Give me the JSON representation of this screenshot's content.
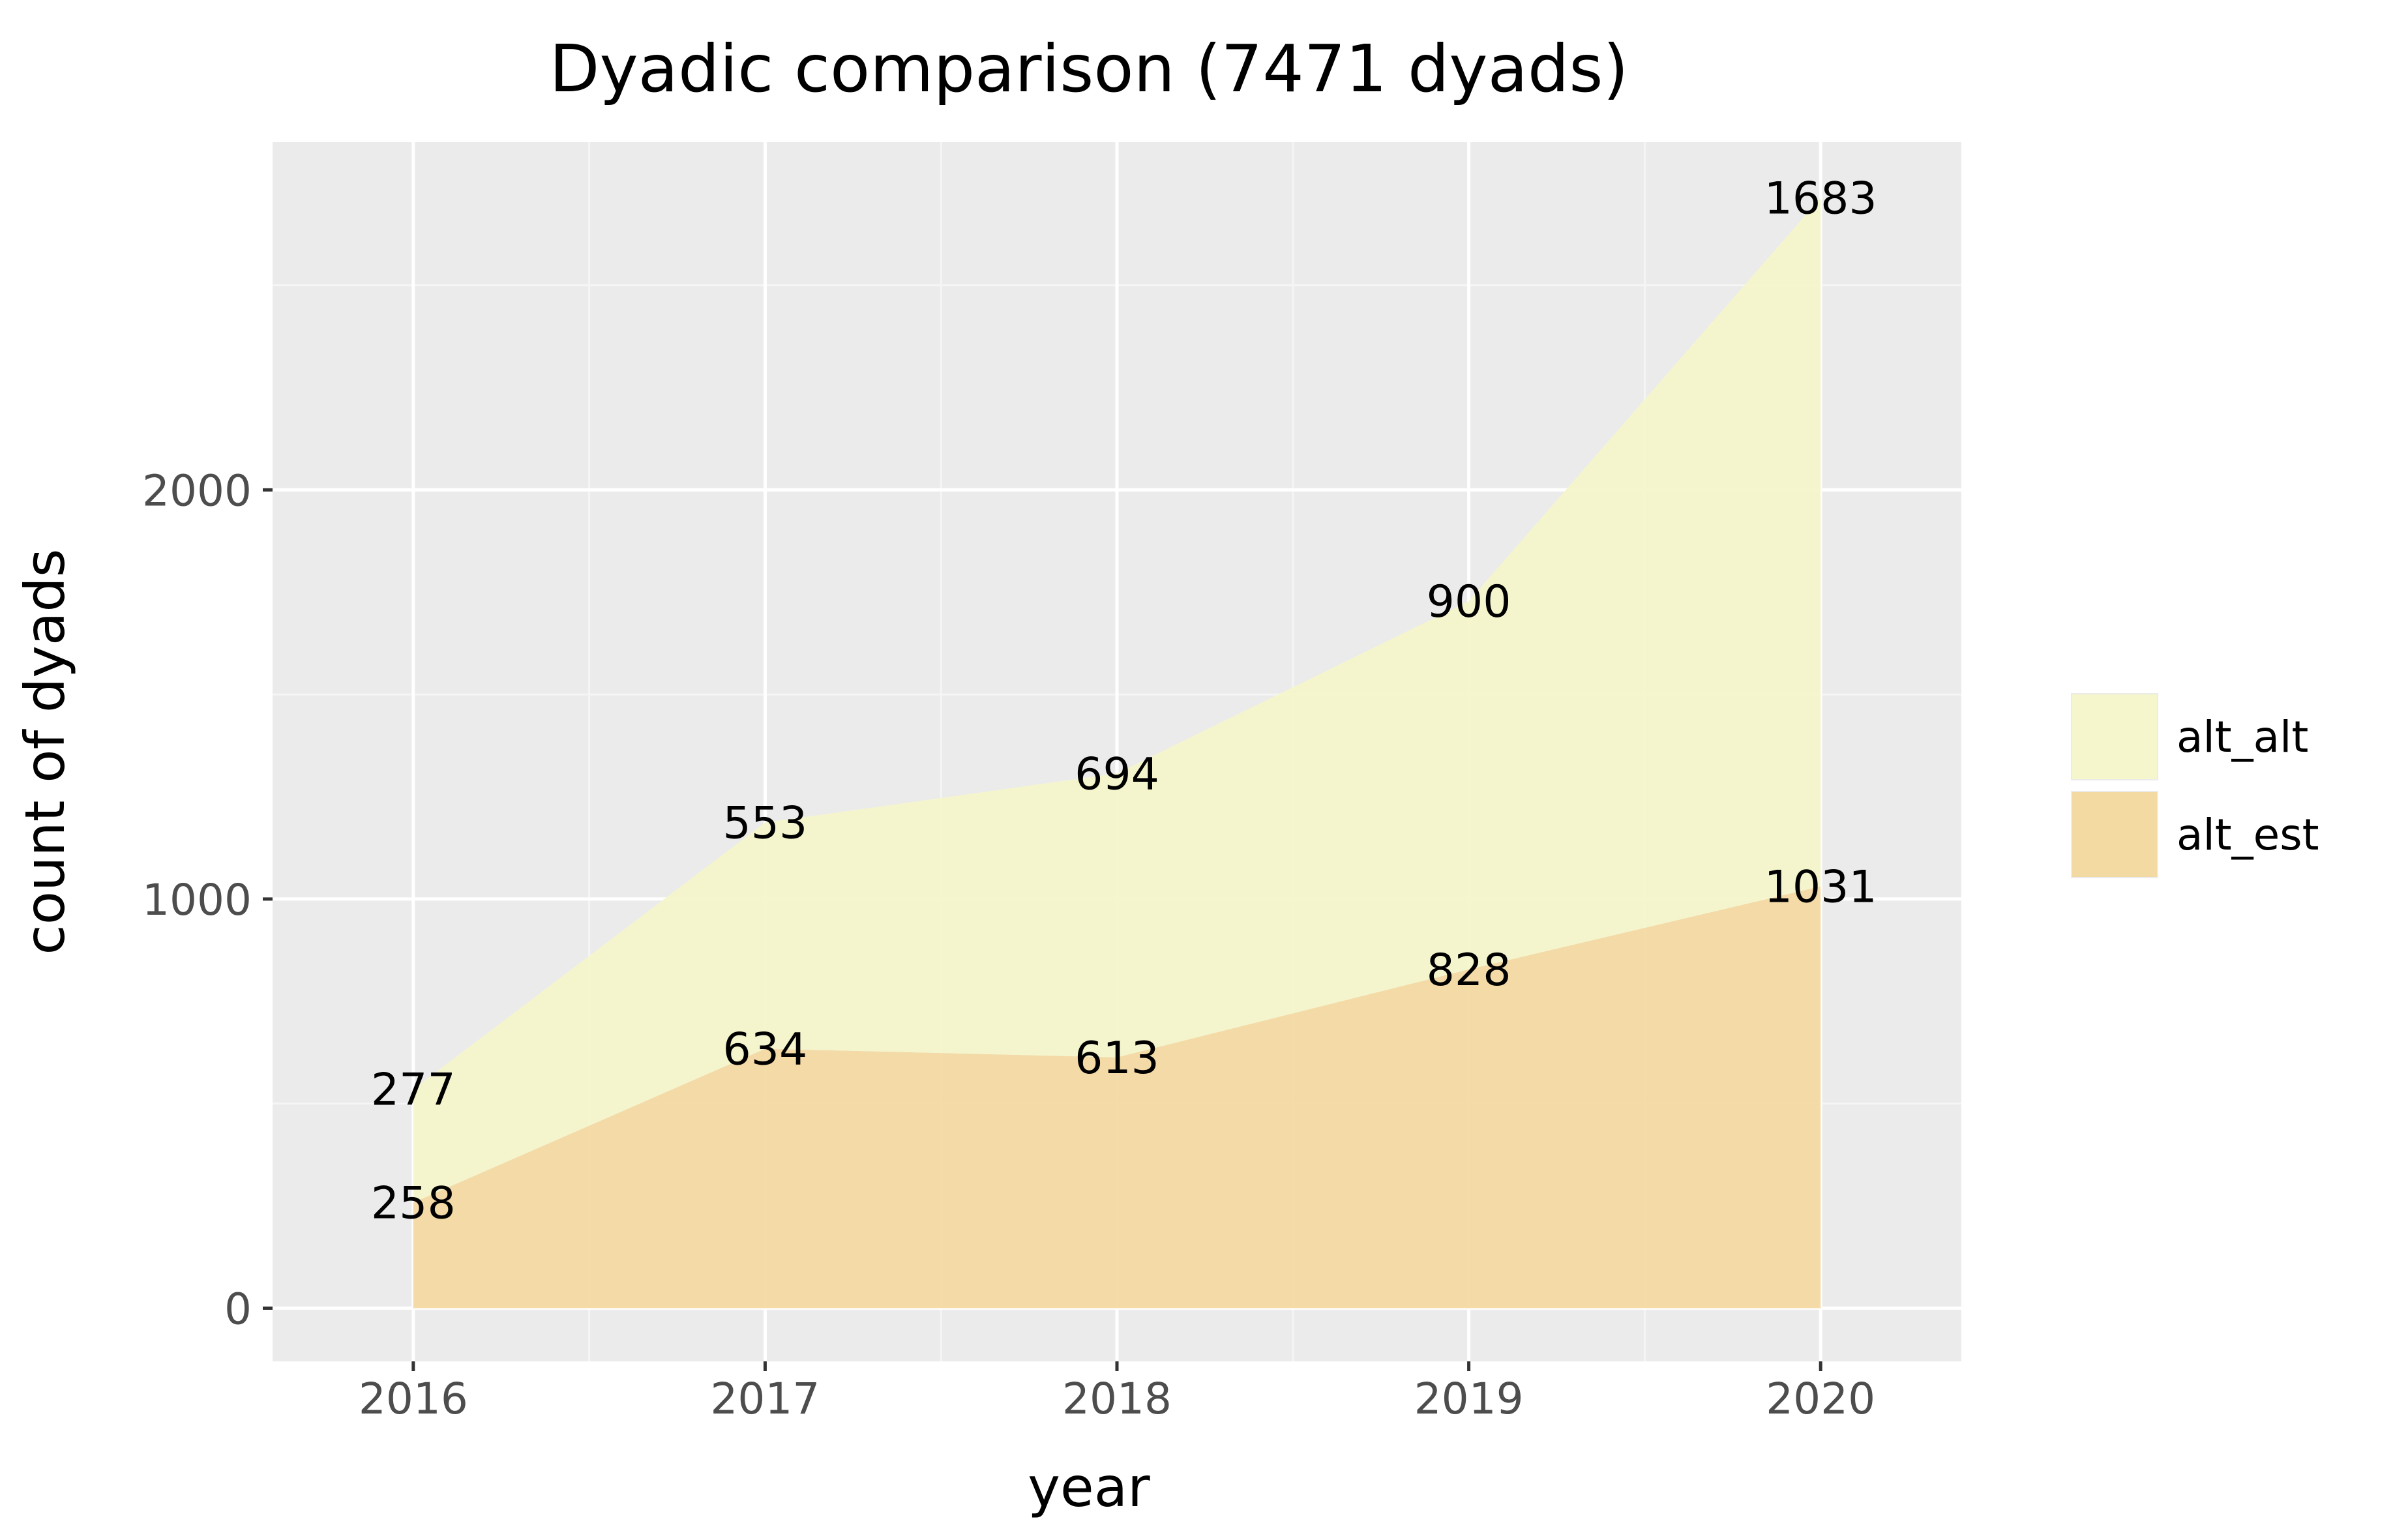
{
  "chart_data": {
    "type": "area",
    "stacked": true,
    "title": "Dyadic comparison (7471 dyads)",
    "xlabel": "year",
    "ylabel": "count of dyads",
    "x": [
      2016,
      2017,
      2018,
      2019,
      2020
    ],
    "x_tick_labels": [
      "2016",
      "2017",
      "2018",
      "2019",
      "2020"
    ],
    "y_ticks": [
      0,
      1000,
      2000
    ],
    "y_tick_labels": [
      "0",
      "1000",
      "2000"
    ],
    "xlim": [
      2015.6,
      2020.4
    ],
    "ylim": [
      -130,
      2850
    ],
    "grid": true,
    "legend_position": "right",
    "series": [
      {
        "name": "alt_est",
        "values": [
          258,
          634,
          613,
          828,
          1031
        ],
        "labels": [
          "258",
          "634",
          "613",
          "828",
          "1031"
        ],
        "color": "#f3d9a2"
      },
      {
        "name": "alt_alt",
        "values": [
          277,
          553,
          694,
          900,
          1683
        ],
        "labels": [
          "277",
          "553",
          "694",
          "900",
          "1683"
        ],
        "color": "#f5f6cb"
      }
    ],
    "legend_order": [
      "alt_alt",
      "alt_est"
    ]
  },
  "colors": {
    "panel_background": "#ebebeb",
    "grid_major": "#ffffff",
    "grid_minor": "#f5f5f5",
    "tick_mark": "#333333"
  }
}
